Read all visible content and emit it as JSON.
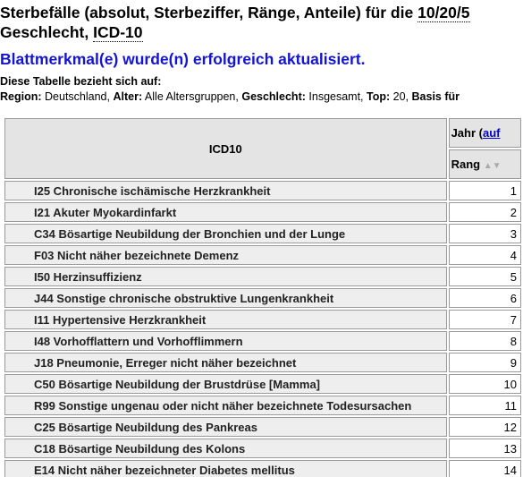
{
  "header": {
    "title_start": "Sterbefälle (absolut, Sterbeziffer, Ränge, Anteile) für die",
    "title_years": "10/20/5",
    "title_line2_start": "Geschlecht,",
    "title_icd": "ICD-10"
  },
  "message": "Blattmerkmal(e) wurde(n) erfolgreich aktualisiert.",
  "context": {
    "intro": "Diese Tabelle bezieht sich auf:",
    "filters": [
      {
        "label": "Region:",
        "value": "Deutschland,"
      },
      {
        "label": "Alter:",
        "value": "Alle Altersgruppen,"
      },
      {
        "label": "Geschlecht:",
        "value": "Insgesamt,"
      },
      {
        "label": "Top:",
        "value": "20,"
      },
      {
        "label": "Basis für",
        "value": ""
      }
    ]
  },
  "table": {
    "col_icd": "ICD10",
    "col_year": "Jahr (",
    "col_year_link": "auf",
    "col_rank": "Rang",
    "sort_icon": "▲▼",
    "rows": [
      [
        "I25 Chronische ischämische Herzkrankheit",
        1
      ],
      [
        "I21 Akuter Myokardinfarkt",
        2
      ],
      [
        "C34 Bösartige Neubildung der Bronchien und der Lunge",
        3
      ],
      [
        "F03 Nicht näher bezeichnete Demenz",
        4
      ],
      [
        "I50 Herzinsuffizienz",
        5
      ],
      [
        "J44 Sonstige chronische obstruktive Lungenkrankheit",
        6
      ],
      [
        "I11 Hypertensive Herzkrankheit",
        7
      ],
      [
        "I48 Vorhofflattern und Vorhofflimmern",
        8
      ],
      [
        "J18 Pneumonie, Erreger nicht näher bezeichnet",
        9
      ],
      [
        "C50 Bösartige Neubildung der Brustdrüse [Mamma]",
        10
      ],
      [
        "R99 Sonstige ungenau oder nicht näher bezeichnete Todesursachen",
        11
      ],
      [
        "C25 Bösartige Neubildung des Pankreas",
        12
      ],
      [
        "C18 Bösartige Neubildung des Kolons",
        13
      ],
      [
        "E14 Nicht näher bezeichneter Diabetes mellitus",
        14
      ]
    ]
  }
}
